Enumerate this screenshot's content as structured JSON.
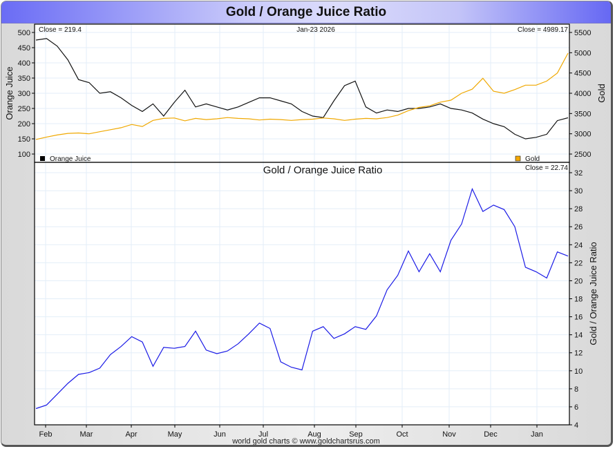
{
  "page_title": "Gold / Orange Juice Ratio",
  "footer": "world gold charts © www.goldchartsrus.com",
  "chart_data": [
    {
      "type": "line",
      "name": "upper-panel",
      "date_label": "Jan-23  2026",
      "grid": true,
      "x_tick_labels": [
        "Feb",
        "Mar",
        "Apr",
        "May",
        "Jun",
        "Jul",
        "Aug",
        "Sep",
        "Oct",
        "Nov",
        "Dec",
        "Jan"
      ],
      "left_axis": {
        "label": "Orange Juice",
        "range": [
          100,
          500
        ],
        "ticks": [
          100,
          150,
          200,
          250,
          300,
          350,
          400,
          450,
          500
        ]
      },
      "right_axis": {
        "label": "Gold",
        "range": [
          2500,
          5500
        ],
        "ticks": [
          2500,
          3000,
          3500,
          4000,
          4500,
          5000,
          5500
        ]
      },
      "legend": [
        {
          "label": "Orange Juice",
          "color": "#000000",
          "position": "bottom-left"
        },
        {
          "label": "Gold",
          "color": "#f5a800",
          "position": "bottom-right"
        }
      ],
      "series": [
        {
          "name": "Orange Juice",
          "axis": "left",
          "color": "#111111",
          "close_label": "Close = 219.4",
          "x": [
            0,
            2,
            4,
            6,
            8,
            10,
            12,
            14,
            16,
            18,
            20,
            22,
            24,
            26,
            28,
            30,
            32,
            34,
            36,
            38,
            40,
            42,
            44,
            46,
            48,
            50,
            52,
            54,
            56,
            58,
            60,
            62,
            64,
            66,
            68,
            70,
            72,
            74,
            76,
            78,
            80,
            82,
            84,
            86,
            88,
            90,
            92,
            94,
            96,
            98,
            100
          ],
          "values": [
            475,
            480,
            455,
            410,
            345,
            335,
            300,
            305,
            285,
            260,
            240,
            265,
            225,
            270,
            310,
            255,
            265,
            255,
            245,
            255,
            270,
            285,
            285,
            275,
            265,
            240,
            225,
            220,
            275,
            325,
            340,
            255,
            235,
            245,
            240,
            250,
            250,
            255,
            265,
            250,
            245,
            235,
            215,
            200,
            190,
            165,
            150,
            155,
            165,
            210,
            219.4
          ]
        },
        {
          "name": "Gold",
          "axis": "right",
          "color": "#f0a800",
          "close_label": "Close = 4989.17",
          "x": [
            0,
            2,
            4,
            6,
            8,
            10,
            12,
            14,
            16,
            18,
            20,
            22,
            24,
            26,
            28,
            30,
            32,
            34,
            36,
            38,
            40,
            42,
            44,
            46,
            48,
            50,
            52,
            54,
            56,
            58,
            60,
            62,
            64,
            66,
            68,
            70,
            72,
            74,
            76,
            78,
            80,
            82,
            84,
            86,
            88,
            90,
            92,
            94,
            96,
            98,
            100
          ],
          "values": [
            2860,
            2920,
            2970,
            3010,
            3020,
            3000,
            3050,
            3100,
            3150,
            3230,
            3180,
            3330,
            3380,
            3390,
            3320,
            3380,
            3350,
            3370,
            3400,
            3380,
            3370,
            3340,
            3360,
            3350,
            3330,
            3350,
            3360,
            3390,
            3370,
            3330,
            3360,
            3380,
            3370,
            3400,
            3460,
            3570,
            3650,
            3690,
            3780,
            3830,
            4000,
            4100,
            4370,
            4050,
            4000,
            4090,
            4200,
            4200,
            4300,
            4500,
            4989.17
          ]
        }
      ]
    },
    {
      "type": "line",
      "name": "lower-panel",
      "title": "Gold  /  Orange Juice Ratio",
      "grid": true,
      "x_tick_labels": [
        "Feb",
        "Mar",
        "Apr",
        "May",
        "Jun",
        "Jul",
        "Aug",
        "Sep",
        "Oct",
        "Nov",
        "Dec",
        "Jan"
      ],
      "right_axis": {
        "label": "Gold / Orange Juice Ratio",
        "range": [
          4,
          32
        ],
        "ticks": [
          4,
          6,
          8,
          10,
          12,
          14,
          16,
          18,
          20,
          22,
          24,
          26,
          28,
          30,
          32
        ]
      },
      "series": [
        {
          "name": "Gold / Orange Juice Ratio",
          "color": "#1a1ae6",
          "close_label": "Close = 22.74",
          "x": [
            0,
            2,
            4,
            6,
            8,
            10,
            12,
            14,
            16,
            18,
            20,
            22,
            24,
            26,
            28,
            30,
            32,
            34,
            36,
            38,
            40,
            42,
            44,
            46,
            48,
            50,
            52,
            54,
            56,
            58,
            60,
            62,
            64,
            66,
            68,
            70,
            72,
            74,
            76,
            78,
            80,
            82,
            84,
            86,
            88,
            90,
            92,
            94,
            96,
            98,
            100
          ],
          "values": [
            5.8,
            6.2,
            7.4,
            8.6,
            9.6,
            9.8,
            10.3,
            11.8,
            12.7,
            13.8,
            13.2,
            10.5,
            12.6,
            12.5,
            12.7,
            14.4,
            12.3,
            11.9,
            12.2,
            13.0,
            14.1,
            15.3,
            14.7,
            11.0,
            10.4,
            10.1,
            14.4,
            14.9,
            13.6,
            14.1,
            14.9,
            14.6,
            16.1,
            19.0,
            20.6,
            23.3,
            21.0,
            23.0,
            21.0,
            24.5,
            26.3,
            30.2,
            27.7,
            28.4,
            27.9,
            26.0,
            21.5,
            21.0,
            20.3,
            23.2,
            22.74
          ]
        }
      ]
    }
  ]
}
